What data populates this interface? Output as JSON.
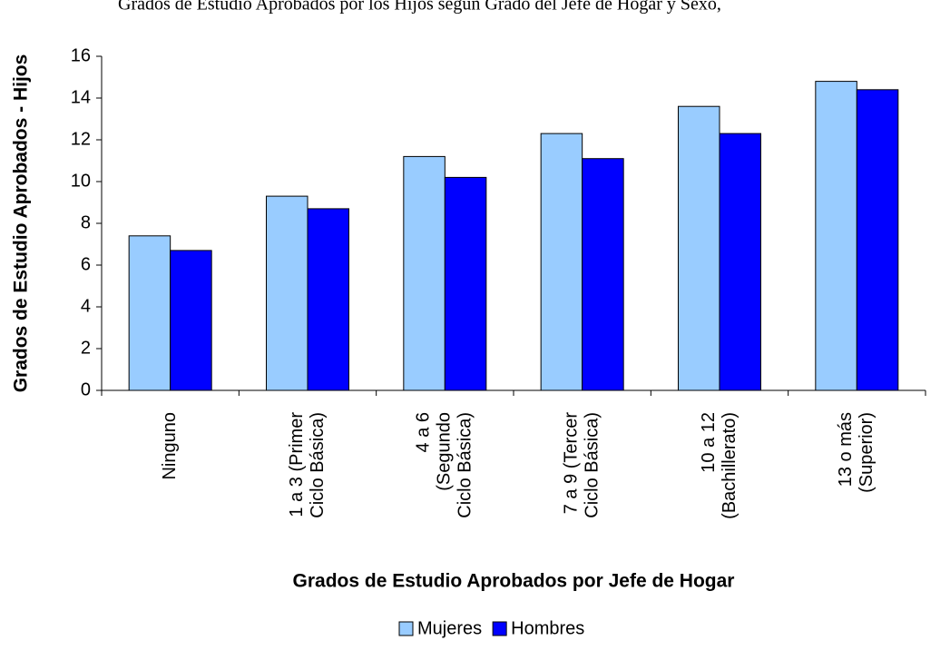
{
  "chart_data": {
    "type": "bar",
    "title": "Grados de Estudio Aprobados por los Hijos según Grado del Jefe de Hogar y Sexo,",
    "y_label": "Grados de Estudio Aprobados - Hijos",
    "x_label": "Grados de Estudio Aprobados por Jefe de Hogar",
    "categories": [
      [
        "Ninguno"
      ],
      [
        "1 a 3 (Primer",
        "Ciclo Básica)"
      ],
      [
        "4 a 6",
        "(Segundo",
        "Ciclo Básica)"
      ],
      [
        "7 a 9 (Tercer",
        "Ciclo Básica)"
      ],
      [
        "10 a 12",
        "(Bachillerato)"
      ],
      [
        "13 o más",
        "(Superior)"
      ]
    ],
    "series": [
      {
        "name": "Mujeres",
        "color": "#99ccff",
        "values": [
          7.4,
          9.3,
          11.2,
          12.3,
          13.6,
          14.8
        ]
      },
      {
        "name": "Hombres",
        "color": "#0000ff",
        "values": [
          6.7,
          8.7,
          10.2,
          11.1,
          12.3,
          14.4
        ]
      }
    ],
    "ylim": [
      0,
      16
    ],
    "yticks": [
      0,
      2,
      4,
      6,
      8,
      10,
      12,
      14,
      16
    ],
    "legend": "bottom"
  }
}
